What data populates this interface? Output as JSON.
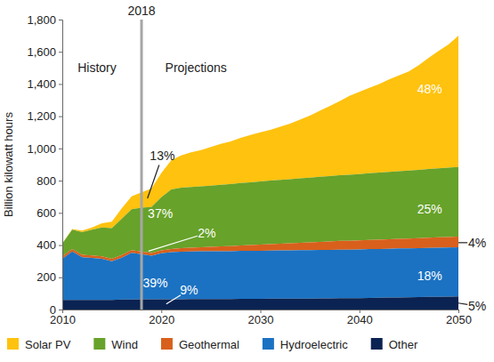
{
  "chart_data": {
    "type": "area",
    "stacked": true,
    "y_label": "Billion kilowatt hours",
    "legend": "bottom",
    "grid": false,
    "xlim": [
      2010,
      2050
    ],
    "xticks": [
      2010,
      2020,
      2030,
      2040,
      2050
    ],
    "ylim": [
      0,
      1800
    ],
    "yticks": [
      0,
      200,
      400,
      600,
      800,
      {
        "value": 1000,
        "label": "1,000"
      },
      {
        "value": 1200,
        "label": "1,200"
      },
      {
        "value": 1400,
        "label": "1,400"
      },
      {
        "value": 1600,
        "label": "1,600"
      },
      {
        "value": 1800,
        "label": "1,800"
      }
    ],
    "vline": 2018,
    "x": [
      2010,
      2011,
      2012,
      2013,
      2014,
      2015,
      2016,
      2017,
      2018,
      2019,
      2020,
      2021,
      2022,
      2023,
      2024,
      2025,
      2026,
      2027,
      2028,
      2029,
      2030,
      2031,
      2032,
      2033,
      2034,
      2035,
      2036,
      2037,
      2038,
      2039,
      2040,
      2041,
      2042,
      2043,
      2044,
      2045,
      2046,
      2047,
      2048,
      2049,
      2050
    ],
    "series": [
      {
        "name": "Solar PV",
        "color": "#ffc20e",
        "values": [
          2,
          5,
          10,
          15,
          25,
          40,
          65,
          80,
          95,
          115,
          150,
          180,
          200,
          215,
          225,
          240,
          255,
          265,
          280,
          295,
          305,
          315,
          330,
          345,
          365,
          385,
          410,
          435,
          460,
          490,
          510,
          530,
          550,
          575,
          595,
          615,
          650,
          690,
          730,
          765,
          815
        ]
      },
      {
        "name": "Wind",
        "color": "#67a22a",
        "values": [
          80,
          120,
          140,
          160,
          180,
          190,
          225,
          255,
          272,
          285,
          330,
          370,
          375,
          377,
          378,
          380,
          382,
          385,
          387,
          389,
          392,
          394,
          396,
          398,
          400,
          402,
          404,
          406,
          408,
          410,
          412,
          414,
          416,
          418,
          420,
          422,
          424,
          426,
          428,
          430,
          432
        ]
      },
      {
        "name": "Geothermal",
        "color": "#d8601c",
        "values": [
          15,
          15,
          15,
          15,
          15,
          15,
          16,
          16,
          16,
          17,
          18,
          20,
          22,
          24,
          26,
          28,
          30,
          32,
          34,
          36,
          38,
          40,
          42,
          44,
          46,
          48,
          50,
          52,
          54,
          55,
          56,
          57,
          58,
          59,
          60,
          61,
          62,
          63,
          64,
          65,
          66
        ]
      },
      {
        "name": "Hydroelectric",
        "color": "#1b72c2",
        "values": [
          255,
          300,
          265,
          260,
          255,
          240,
          260,
          290,
          280,
          270,
          285,
          292,
          295,
          295,
          296,
          296,
          297,
          297,
          298,
          298,
          299,
          299,
          300,
          300,
          300,
          301,
          301,
          301,
          302,
          302,
          302,
          303,
          303,
          303,
          304,
          304,
          304,
          305,
          305,
          305,
          306
        ]
      },
      {
        "name": "Other",
        "color": "#0b2352",
        "values": [
          60,
          60,
          60,
          60,
          60,
          60,
          62,
          62,
          64,
          64,
          64,
          64,
          64,
          65,
          65,
          65,
          65,
          65,
          66,
          66,
          66,
          67,
          67,
          67,
          68,
          68,
          69,
          69,
          70,
          70,
          71,
          72,
          73,
          74,
          75,
          76,
          77,
          78,
          79,
          80,
          81
        ]
      }
    ],
    "annotations": [
      {
        "text": "History",
        "x": 2013.5,
        "y": 1500,
        "color": "#222222"
      },
      {
        "text": "Projections",
        "x": 2023.5,
        "y": 1500,
        "color": "#222222"
      },
      {
        "text": "13%",
        "x": 2020.1,
        "y": 955,
        "color": "#222222",
        "point": [
          2018.6,
          690
        ]
      },
      {
        "text": "37%",
        "x": 2019.9,
        "y": 596,
        "color": "#ffffff"
      },
      {
        "text": "2%",
        "x": 2024.6,
        "y": 475,
        "color": "#ffffff",
        "point": [
          2018.7,
          362
        ]
      },
      {
        "text": "39%",
        "x": 2019.4,
        "y": 166,
        "color": "#ffffff"
      },
      {
        "text": "9%",
        "x": 2022.8,
        "y": 121,
        "color": "#ffffff",
        "point": [
          2020.5,
          35
        ]
      },
      {
        "text": "48%",
        "x": 2047.1,
        "y": 1369,
        "color": "#ffffff"
      },
      {
        "text": "25%",
        "x": 2047.1,
        "y": 624,
        "color": "#ffffff"
      },
      {
        "text": "18%",
        "x": 2047.1,
        "y": 210,
        "color": "#ffffff"
      },
      {
        "text": "4%",
        "x": 2051.9,
        "y": 415,
        "color": "#222222",
        "point": [
          2050,
          415
        ]
      },
      {
        "text": "5%",
        "x": 2051.9,
        "y": 22,
        "color": "#222222",
        "point": [
          2050,
          40
        ]
      }
    ]
  }
}
